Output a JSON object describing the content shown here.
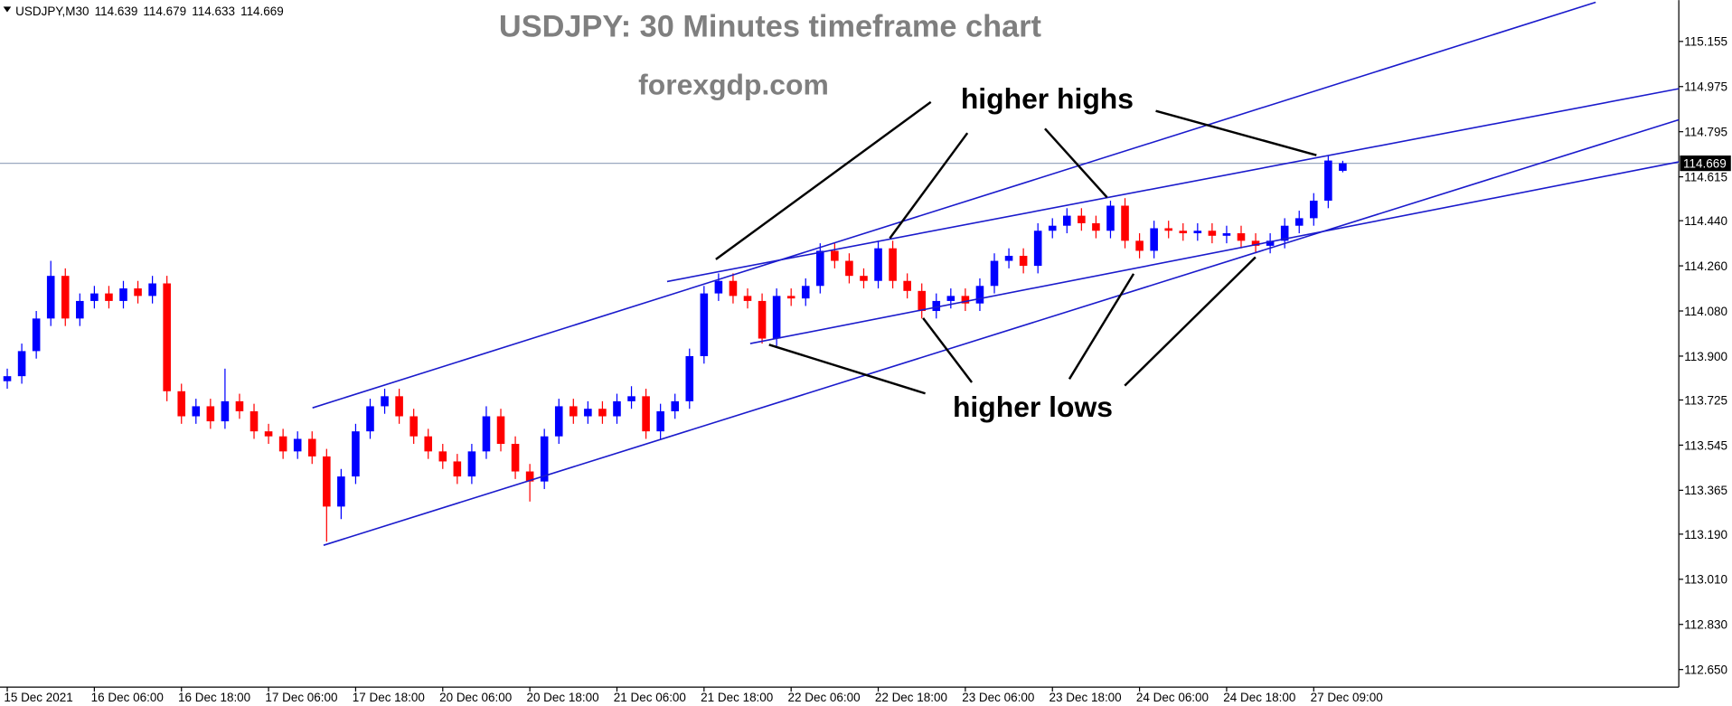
{
  "chart_data": {
    "type": "candlestick",
    "title": "USDJPY: 30 Minutes timeframe chart",
    "subtitle": "forexgdp.com",
    "symbol": "USDJPY,M30",
    "annotations": [
      "higher highs",
      "higher lows"
    ],
    "up_color": "#0000ff",
    "down_color": "#ff0000",
    "open": [
      113.8,
      113.82,
      113.92,
      114.05,
      114.22,
      114.05,
      114.12,
      114.15,
      114.12,
      114.17,
      114.14,
      114.19,
      113.76,
      113.66,
      113.7,
      113.64,
      113.72,
      113.68,
      113.6,
      113.58,
      113.52,
      113.57,
      113.5,
      113.3,
      113.42,
      113.6,
      113.7,
      113.74,
      113.66,
      113.58,
      113.52,
      113.48,
      113.42,
      113.52,
      113.66,
      113.55,
      113.44,
      113.4,
      113.58,
      113.7,
      113.66,
      113.69,
      113.66,
      113.72,
      113.74,
      113.6,
      113.68,
      113.72,
      113.9,
      114.15,
      114.2,
      114.14,
      114.12,
      113.97,
      114.14,
      114.13,
      114.18,
      114.32,
      114.28,
      114.22,
      114.2,
      114.33,
      114.2,
      114.16,
      114.08,
      114.12,
      114.14,
      114.11,
      114.18,
      114.28,
      114.3,
      114.26,
      114.4,
      114.42,
      114.46,
      114.43,
      114.4,
      114.5,
      114.36,
      114.32,
      114.41,
      114.4,
      114.39,
      114.4,
      114.38,
      114.39,
      114.36,
      114.34,
      114.36,
      114.42,
      114.45,
      114.52,
      114.639
    ],
    "high": [
      113.85,
      113.95,
      114.08,
      114.28,
      114.25,
      114.15,
      114.18,
      114.18,
      114.2,
      114.2,
      114.22,
      114.22,
      113.79,
      113.73,
      113.73,
      113.85,
      113.75,
      113.71,
      113.63,
      113.61,
      113.6,
      113.6,
      113.53,
      113.45,
      113.63,
      113.73,
      113.77,
      113.77,
      113.69,
      113.61,
      113.55,
      113.51,
      113.55,
      113.7,
      113.69,
      113.58,
      113.47,
      113.61,
      113.73,
      113.73,
      113.72,
      113.72,
      113.75,
      113.78,
      113.77,
      113.71,
      113.75,
      113.93,
      114.18,
      114.23,
      114.23,
      114.17,
      114.15,
      114.17,
      114.17,
      114.21,
      114.35,
      114.35,
      114.31,
      114.25,
      114.36,
      114.36,
      114.23,
      114.19,
      114.15,
      114.17,
      114.17,
      114.21,
      114.31,
      114.33,
      114.33,
      114.43,
      114.45,
      114.49,
      114.49,
      114.46,
      114.52,
      114.53,
      114.39,
      114.44,
      114.44,
      114.43,
      114.43,
      114.43,
      114.42,
      114.42,
      114.39,
      114.39,
      114.45,
      114.48,
      114.55,
      114.7,
      114.679
    ],
    "low": [
      113.77,
      113.79,
      113.89,
      114.02,
      114.02,
      114.02,
      114.09,
      114.09,
      114.09,
      114.11,
      114.11,
      113.72,
      113.63,
      113.63,
      113.61,
      113.61,
      113.65,
      113.57,
      113.55,
      113.49,
      113.49,
      113.47,
      113.16,
      113.25,
      113.39,
      113.57,
      113.67,
      113.63,
      113.55,
      113.49,
      113.45,
      113.39,
      113.39,
      113.49,
      113.52,
      113.41,
      113.32,
      113.37,
      113.55,
      113.63,
      113.63,
      113.63,
      113.63,
      113.69,
      113.57,
      113.57,
      113.65,
      113.69,
      113.87,
      114.12,
      114.11,
      114.09,
      113.95,
      113.94,
      114.1,
      114.1,
      114.15,
      114.25,
      114.19,
      114.17,
      114.17,
      114.17,
      114.13,
      114.05,
      114.05,
      114.09,
      114.08,
      114.08,
      114.15,
      114.25,
      114.23,
      114.23,
      114.37,
      114.39,
      114.4,
      114.37,
      114.37,
      114.33,
      114.29,
      114.29,
      114.37,
      114.36,
      114.36,
      114.35,
      114.35,
      114.33,
      114.31,
      114.31,
      114.33,
      114.39,
      114.42,
      114.49,
      114.633
    ],
    "close": [
      113.82,
      113.92,
      114.05,
      114.22,
      114.05,
      114.12,
      114.15,
      114.12,
      114.17,
      114.14,
      114.19,
      113.76,
      113.66,
      113.7,
      113.64,
      113.72,
      113.68,
      113.6,
      113.58,
      113.52,
      113.57,
      113.5,
      113.3,
      113.42,
      113.6,
      113.7,
      113.74,
      113.66,
      113.58,
      113.52,
      113.48,
      113.42,
      113.52,
      113.66,
      113.55,
      113.44,
      113.4,
      113.58,
      113.7,
      113.66,
      113.69,
      113.66,
      113.72,
      113.74,
      113.6,
      113.68,
      113.72,
      113.9,
      114.15,
      114.2,
      114.14,
      114.12,
      113.97,
      114.14,
      114.13,
      114.18,
      114.32,
      114.28,
      114.22,
      114.2,
      114.33,
      114.2,
      114.16,
      114.08,
      114.12,
      114.14,
      114.11,
      114.18,
      114.28,
      114.3,
      114.26,
      114.4,
      114.42,
      114.46,
      114.43,
      114.4,
      114.5,
      114.36,
      114.32,
      114.41,
      114.4,
      114.39,
      114.4,
      114.38,
      114.39,
      114.36,
      114.34,
      114.36,
      114.42,
      114.45,
      114.52,
      114.68,
      114.669
    ],
    "xlim": [
      -0.5,
      115.15
    ],
    "xticks": [
      {
        "value": 0,
        "label": "15 Dec 2021"
      },
      {
        "value": 6,
        "label": "16 Dec 06:00"
      },
      {
        "value": 12,
        "label": "16 Dec 18:00"
      },
      {
        "value": 18,
        "label": "17 Dec 06:00"
      },
      {
        "value": 24,
        "label": "17 Dec 18:00"
      },
      {
        "value": 30,
        "label": "20 Dec 06:00"
      },
      {
        "value": 36,
        "label": "20 Dec 18:00"
      },
      {
        "value": 42,
        "label": "21 Dec 06:00"
      },
      {
        "value": 48,
        "label": "21 Dec 18:00"
      },
      {
        "value": 54,
        "label": "22 Dec 06:00"
      },
      {
        "value": 60,
        "label": "22 Dec 18:00"
      },
      {
        "value": 66,
        "label": "23 Dec 06:00"
      },
      {
        "value": 72,
        "label": "23 Dec 18:00"
      },
      {
        "value": 78,
        "label": "24 Dec 06:00"
      },
      {
        "value": 84,
        "label": "24 Dec 18:00"
      },
      {
        "value": 90,
        "label": "27 Dec 09:00"
      }
    ],
    "ylim": [
      112.58,
      115.32
    ],
    "yticks": [
      115.155,
      114.975,
      114.795,
      114.615,
      {
        "value": 114.44,
        "label": "114.440"
      },
      {
        "value": 114.26,
        "label": "114.260"
      },
      {
        "value": 114.08,
        "label": "114.080"
      },
      {
        "value": 113.9,
        "label": "113.900"
      },
      113.725,
      113.545,
      113.365,
      {
        "value": 113.19,
        "label": "113.190"
      },
      {
        "value": 113.01,
        "label": "113.010"
      },
      {
        "value": 112.83,
        "label": "112.830"
      },
      {
        "value": 112.65,
        "label": "112.650"
      }
    ]
  }
}
